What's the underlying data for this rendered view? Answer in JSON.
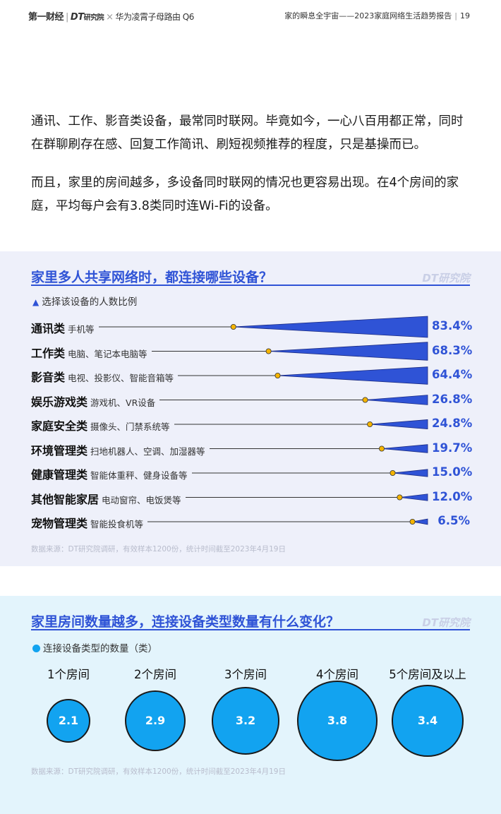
{
  "header": {
    "logo_main": "第一财经",
    "logo_dt": "DT",
    "logo_dt_suffix": "研究院",
    "partner": "华为凌霄子母路由 Q6",
    "report_title": "家的瞬息全宇宙——2023家庭网络生活趋势报告",
    "page_number": "19"
  },
  "intro": {
    "para1": "通讯、工作、影音类设备，最常同时联网。毕竟如今，一心八百用都正常，同时在群聊刷存在感、回复工作简讯、刷短视频推荐的程度，只是基操而已。",
    "para2": "而且，家里的房间越多，多设备同时联网的情况也更容易出现。在4个房间的家庭，平均每户会有3.8类同时连Wi-Fi的设备。"
  },
  "chart1": {
    "title": "家里多人共享网络时，都连接哪些设备？",
    "watermark": "DT研究院",
    "legend": "选择该设备的人数比例",
    "source": "数据来源：DT研究院调研，有效样本1200份，统计时间截至2023年4月19日"
  },
  "chart2": {
    "title": "家里房间数量越多，连接设备类型数量有什么变化？",
    "watermark": "DT研究院",
    "legend": "连接设备类型的数量（类）",
    "source": "数据来源：DT研究院调研，有效样本1200份，统计时间截至2023年4月19日"
  },
  "chart_data": [
    {
      "type": "bar",
      "title": "家里多人共享网络时，都连接哪些设备？",
      "legend": "选择该设备的人数比例",
      "unit": "%",
      "categories": [
        {
          "name": "通讯类",
          "examples": "手机等",
          "value": 83.4,
          "label": "83.4%"
        },
        {
          "name": "工作类",
          "examples": "电脑、笔记本电脑等",
          "value": 68.3,
          "label": "68.3%"
        },
        {
          "name": "影音类",
          "examples": "电视、投影仪、智能音箱等",
          "value": 64.4,
          "label": "64.4%"
        },
        {
          "name": "娱乐游戏类",
          "examples": "游戏机、VR设备",
          "value": 26.8,
          "label": "26.8%"
        },
        {
          "name": "家庭安全类",
          "examples": "摄像头、门禁系统等",
          "value": 24.8,
          "label": "24.8%"
        },
        {
          "name": "环境管理类",
          "examples": "扫地机器人、空调、加湿器等",
          "value": 19.7,
          "label": "19.7%"
        },
        {
          "name": "健康管理类",
          "examples": "智能体重秤、健身设备等",
          "value": 15.0,
          "label": "15.0%"
        },
        {
          "name": "其他智能家居",
          "examples": "电动窗帘、电饭煲等",
          "value": 12.0,
          "label": "12.0%"
        },
        {
          "name": "宠物管理类",
          "examples": "智能投食机等",
          "value": 6.5,
          "label": "6.5%"
        }
      ],
      "colors": {
        "bar": "#2f53d6",
        "dot": "#f5b400"
      }
    },
    {
      "type": "bubble",
      "title": "家里房间数量越多，连接设备类型数量有什么变化？",
      "legend": "连接设备类型的数量（类）",
      "categories": [
        "1个房间",
        "2个房间",
        "3个房间",
        "4个房间",
        "5个房间及以上"
      ],
      "values": [
        2.1,
        2.9,
        3.2,
        3.8,
        3.4
      ],
      "labels": [
        "2.1",
        "2.9",
        "3.2",
        "3.8",
        "3.4"
      ],
      "colors": {
        "bubble": "#12a3f0"
      }
    }
  ]
}
